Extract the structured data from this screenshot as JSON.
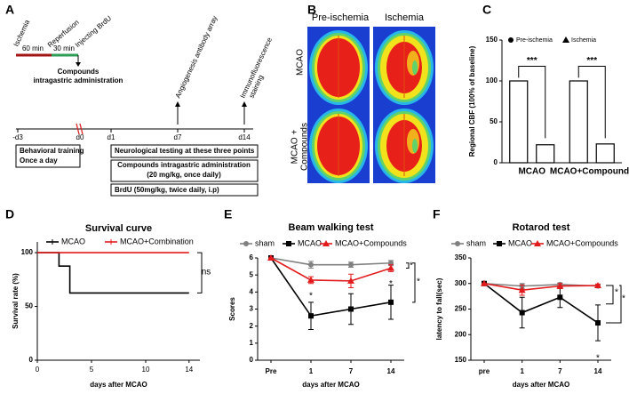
{
  "panel_labels": [
    "A",
    "B",
    "C",
    "D",
    "E",
    "F"
  ],
  "timeline": {
    "events": [
      "Ischemia",
      "Reperfusion",
      "Injecting BrdU"
    ],
    "durations": [
      "60 min",
      "30 min"
    ],
    "compounds": [
      "Compounds",
      "intragastric administration"
    ],
    "assays": [
      "Angiogenesis antibody array",
      "Immunofluorescence",
      "staining"
    ],
    "days": [
      "-d3",
      "d0",
      "d1",
      "d7",
      "d14"
    ],
    "behavioral": [
      "Behavioral training",
      "Once a day"
    ],
    "neuro": "Neurological testing at these three points",
    "compound_box": [
      "Compounds intragastric administration",
      "(20 mg/kg, once daily)"
    ],
    "brdu": "BrdU (50mg/kg, twice daily, i.p)"
  },
  "images": {
    "columns": [
      "Pre-ischemia",
      "Ischemia"
    ],
    "rows": [
      "MCAO",
      "MCAO +",
      "Compounds"
    ]
  },
  "chart_data": [
    {
      "type": "bar",
      "y_label": "Regional CBF (100% of baseline)",
      "categories": [
        "MCAO",
        "MCAO+Compounds"
      ],
      "series": [
        {
          "name": "Pre-ischemia",
          "color": "#ffffff",
          "values": [
            100,
            100
          ]
        },
        {
          "name": "Ischemia",
          "color": "#ffffff",
          "values": [
            22,
            23
          ]
        }
      ],
      "ylim": [
        0,
        150
      ],
      "yticks": [
        0,
        50,
        100,
        150
      ],
      "annotations": [
        "***",
        "***"
      ]
    },
    {
      "type": "line",
      "title": "Survival curve",
      "x_label": "days after MCAO",
      "y_label": "Survival rate (%)",
      "xlim": [
        0,
        15
      ],
      "xticks": [
        0,
        5,
        10,
        14
      ],
      "ylim": [
        0,
        110
      ],
      "yticks": [
        0,
        50,
        100
      ],
      "series": [
        {
          "name": "MCAO",
          "color": "#000000",
          "x": [
            0,
            2,
            2,
            3,
            3,
            14
          ],
          "values": [
            100,
            100,
            87.5,
            87.5,
            62.5,
            62.5
          ]
        },
        {
          "name": "MCAO+Combination",
          "color": "#e31a1c",
          "x": [
            0,
            14
          ],
          "values": [
            100,
            100
          ]
        }
      ],
      "annotations": [
        "ns"
      ]
    },
    {
      "type": "line",
      "title": "Beam walking test",
      "x_label": "days after MCAO",
      "y_label": "Scores",
      "categories": [
        "Pre",
        "1",
        "7",
        "14"
      ],
      "ylim": [
        0,
        6
      ],
      "yticks": [
        0,
        1,
        2,
        3,
        4,
        5,
        6
      ],
      "series": [
        {
          "name": "sham",
          "color": "#808080",
          "values": [
            6,
            5.6,
            5.6,
            5.7
          ],
          "errors": [
            0,
            0.2,
            0.15,
            0.15
          ]
        },
        {
          "name": "MCAO",
          "color": "#000000",
          "values": [
            6,
            2.6,
            3,
            3.4
          ],
          "errors": [
            0,
            0.8,
            0.9,
            1.0
          ]
        },
        {
          "name": "MCAO+Compounds",
          "color": "#e31a1c",
          "values": [
            6,
            4.7,
            4.65,
            5.4
          ],
          "errors": [
            0,
            0.2,
            0.4,
            0.2
          ]
        }
      ],
      "annotations": [
        "*",
        "*",
        "*",
        "*"
      ]
    },
    {
      "type": "line",
      "title": "Rotarod test",
      "x_label": "days after MCAO",
      "y_label": "latency to fall(sec)",
      "categories": [
        "pre",
        "1",
        "7",
        "14"
      ],
      "ylim": [
        150,
        350
      ],
      "yticks": [
        150,
        200,
        250,
        300,
        350
      ],
      "series": [
        {
          "name": "sham",
          "color": "#808080",
          "values": [
            300,
            295,
            298,
            295
          ],
          "errors": [
            0,
            5,
            3,
            3
          ]
        },
        {
          "name": "MCAO",
          "color": "#000000",
          "values": [
            300,
            243,
            273,
            223
          ],
          "errors": [
            0,
            30,
            20,
            35
          ]
        },
        {
          "name": "MCAO+Compounds",
          "color": "#e31a1c",
          "values": [
            300,
            287,
            295,
            296
          ],
          "errors": [
            0,
            10,
            5,
            3
          ]
        }
      ],
      "annotations": [
        "*",
        "*",
        "*"
      ]
    }
  ]
}
